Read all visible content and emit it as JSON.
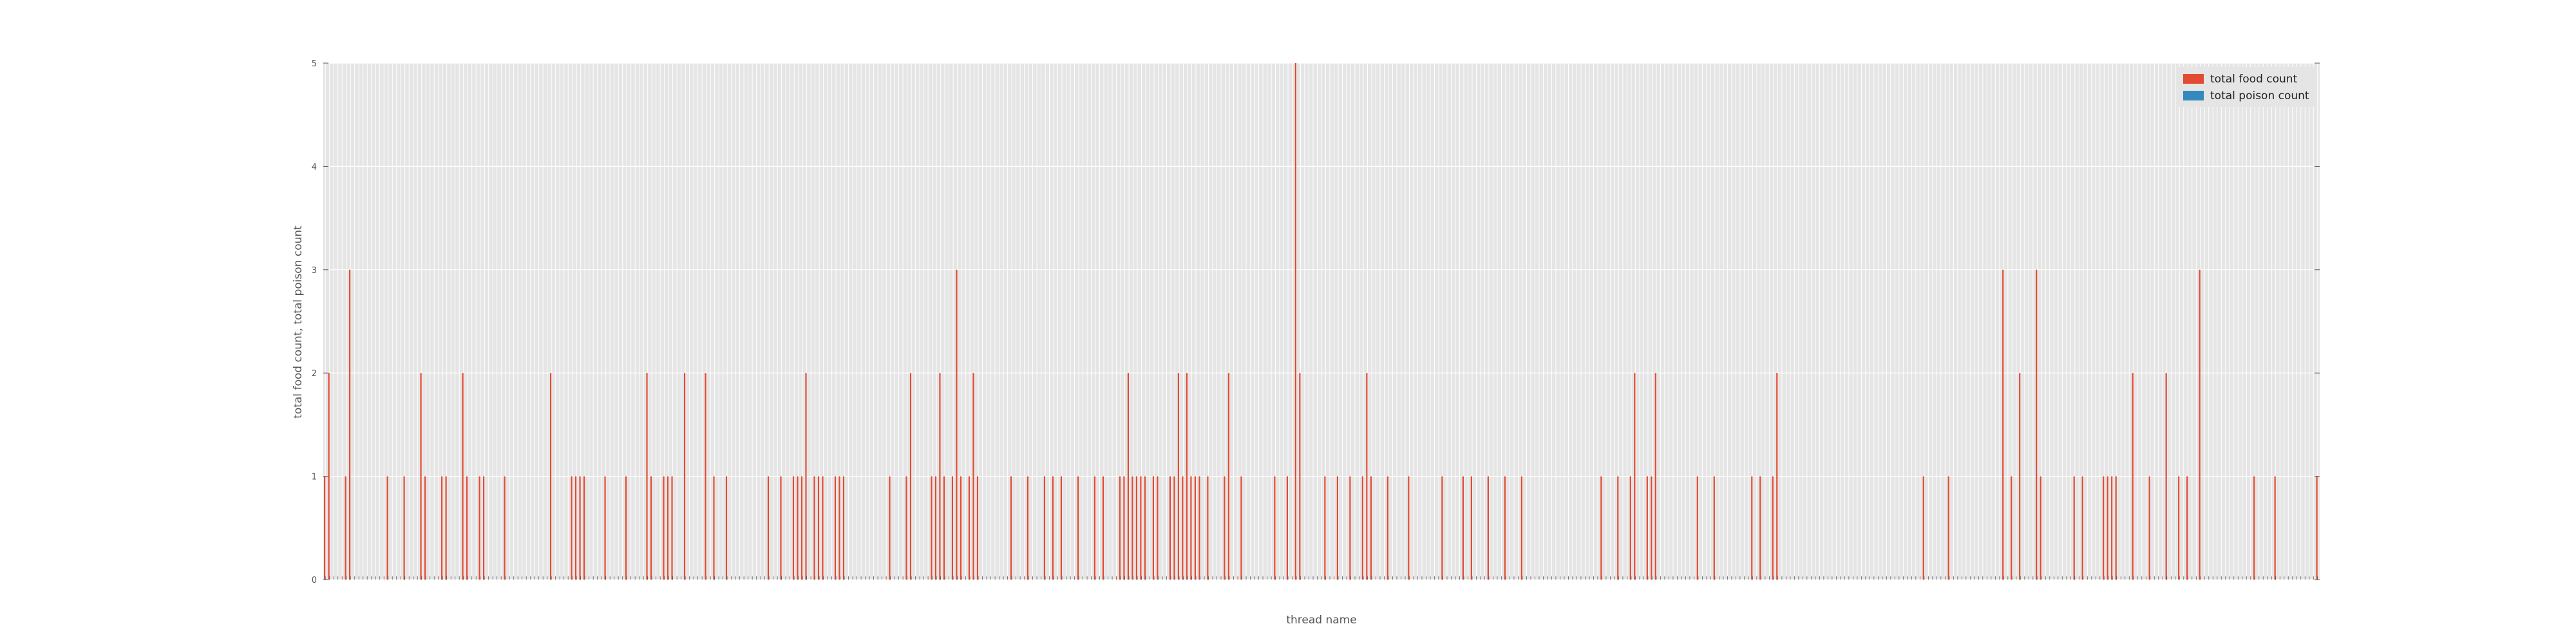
{
  "chart_data": {
    "type": "bar",
    "xlabel": "thread name",
    "ylabel": "total food count, total poison count",
    "ylim": [
      0,
      5
    ],
    "yticks": [
      0,
      1,
      2,
      3,
      4,
      5
    ],
    "grid": true,
    "legend_position": "top-right",
    "colors": {
      "background": "#e5e5e5",
      "grid": "#ffffff",
      "food": "#e24a33",
      "poison": "#348abd",
      "tick": "#555555"
    },
    "series": [
      {
        "name": "total food count",
        "values": [
          1,
          2,
          0,
          0,
          0,
          1,
          3,
          0,
          0,
          0,
          0,
          0,
          0,
          0,
          0,
          1,
          0,
          0,
          0,
          1,
          0,
          0,
          0,
          2,
          1,
          0,
          0,
          0,
          1,
          1,
          0,
          0,
          0,
          2,
          1,
          0,
          0,
          1,
          1,
          0,
          0,
          0,
          0,
          1,
          0,
          0,
          0,
          0,
          0,
          0,
          0,
          0,
          0,
          0,
          2,
          0,
          0,
          0,
          0,
          1,
          1,
          1,
          1,
          0,
          0,
          0,
          0,
          1,
          0,
          0,
          0,
          0,
          1,
          0,
          0,
          0,
          0,
          2,
          1,
          0,
          0,
          1,
          1,
          1,
          0,
          0,
          2,
          0,
          0,
          0,
          0,
          2,
          0,
          1,
          0,
          0,
          1,
          0,
          0,
          0,
          0,
          0,
          0,
          0,
          0,
          0,
          1,
          0,
          0,
          1,
          0,
          0,
          1,
          1,
          1,
          2,
          0,
          1,
          1,
          1,
          0,
          0,
          1,
          1,
          1,
          0,
          0,
          0,
          0,
          0,
          0,
          0,
          0,
          0,
          0,
          1,
          0,
          0,
          0,
          1,
          2,
          0,
          0,
          0,
          0,
          1,
          1,
          2,
          1,
          0,
          1,
          3,
          1,
          0,
          1,
          2,
          1,
          0,
          0,
          0,
          0,
          0,
          0,
          0,
          1,
          0,
          0,
          0,
          1,
          0,
          0,
          0,
          1,
          0,
          1,
          0,
          1,
          0,
          0,
          0,
          1,
          0,
          0,
          0,
          1,
          0,
          1,
          0,
          0,
          0,
          1,
          1,
          2,
          1,
          1,
          1,
          1,
          0,
          1,
          1,
          0,
          0,
          1,
          1,
          2,
          1,
          2,
          1,
          1,
          1,
          0,
          1,
          0,
          0,
          0,
          1,
          2,
          0,
          0,
          1,
          0,
          0,
          0,
          0,
          0,
          0,
          0,
          1,
          0,
          0,
          1,
          0,
          5,
          2,
          0,
          0,
          0,
          0,
          0,
          1,
          0,
          0,
          1,
          0,
          0,
          1,
          0,
          0,
          1,
          2,
          1,
          0,
          0,
          0,
          1,
          0,
          0,
          0,
          0,
          1,
          0,
          0,
          0,
          0,
          0,
          0,
          0,
          1,
          0,
          0,
          0,
          0,
          1,
          0,
          1,
          0,
          0,
          0,
          1,
          0,
          0,
          0,
          1,
          0,
          0,
          0,
          1,
          0,
          0,
          0,
          0,
          0,
          0,
          0,
          0,
          0,
          0,
          0,
          0,
          0,
          0,
          0,
          0,
          0,
          0,
          1,
          0,
          0,
          0,
          1,
          0,
          0,
          1,
          2,
          0,
          0,
          1,
          1,
          2,
          0,
          0,
          0,
          0,
          0,
          0,
          0,
          0,
          0,
          1,
          0,
          0,
          0,
          1,
          0,
          0,
          0,
          0,
          0,
          0,
          0,
          0,
          1,
          0,
          1,
          0,
          0,
          1,
          2,
          0,
          0,
          0,
          0,
          0,
          0,
          0,
          0,
          0,
          0,
          0,
          0,
          0,
          0,
          0,
          0,
          0,
          0,
          0,
          0,
          0,
          0,
          0,
          0,
          0,
          0,
          0,
          0,
          0,
          0,
          0,
          0,
          0,
          0,
          1,
          0,
          0,
          0,
          0,
          0,
          1,
          0,
          0,
          0,
          0,
          0,
          0,
          0,
          0,
          0,
          0,
          0,
          0,
          3,
          0,
          1,
          0,
          2,
          0,
          0,
          0,
          3,
          1,
          0,
          0,
          0,
          0,
          0,
          0,
          0,
          1,
          0,
          1,
          0,
          0,
          0,
          0,
          1,
          1,
          1,
          1,
          0,
          0,
          0,
          2,
          0,
          0,
          0,
          1,
          0,
          0,
          0,
          2,
          0,
          0,
          1,
          0,
          1,
          0,
          0,
          3,
          0,
          0,
          0,
          0,
          0,
          0,
          0,
          0,
          0,
          0,
          0,
          0,
          1,
          0,
          0,
          0,
          0,
          1,
          0,
          0,
          0,
          0,
          0,
          0,
          0,
          0,
          0,
          1
        ]
      },
      {
        "name": "total poison count",
        "values": [
          0,
          0,
          0,
          0,
          0,
          0,
          0,
          0,
          0,
          0,
          0,
          0,
          0,
          0,
          0,
          0,
          0,
          0,
          0,
          0,
          0,
          0,
          0,
          0,
          0,
          0,
          0,
          0,
          0,
          0,
          0,
          0,
          0,
          0,
          0,
          0,
          0,
          0,
          0,
          0,
          0,
          0,
          0,
          0,
          0,
          0,
          0,
          0,
          0,
          0,
          0,
          0,
          0,
          0,
          0,
          0,
          0,
          0,
          0,
          0,
          0,
          0,
          0,
          0,
          0,
          0,
          0,
          0,
          0,
          0,
          0,
          0,
          0,
          0,
          0,
          0,
          0,
          0,
          0,
          0,
          0,
          0,
          0,
          0,
          0,
          0,
          0,
          0,
          0,
          0,
          0,
          0,
          0,
          0,
          0,
          0,
          0,
          0,
          0,
          0,
          0,
          0,
          0,
          0,
          0,
          0,
          0,
          0,
          0,
          0,
          0,
          0,
          0,
          0,
          0,
          0,
          0,
          0,
          0,
          0,
          0,
          0,
          0,
          0,
          0,
          0,
          0,
          0,
          0,
          0,
          0,
          0,
          0,
          0,
          0,
          0,
          0,
          0,
          0,
          0,
          0,
          0,
          0,
          0,
          0,
          0,
          0,
          0,
          0,
          0,
          0,
          0,
          0,
          0,
          0,
          0,
          0,
          0,
          0,
          0,
          0,
          0,
          0,
          0,
          0,
          0,
          0,
          0,
          0,
          0,
          0,
          0,
          0,
          0,
          0,
          0,
          0,
          0,
          0,
          0,
          0,
          0,
          0,
          0,
          0,
          0,
          0,
          0,
          0,
          0,
          0,
          0,
          0,
          0,
          0,
          0,
          0,
          0,
          0,
          0,
          0,
          0,
          0,
          0,
          0,
          0,
          0,
          0,
          0,
          0,
          0,
          0,
          0,
          0,
          0,
          0,
          0,
          0,
          0,
          0,
          0,
          0,
          0,
          0,
          0,
          0,
          0,
          0,
          0,
          0,
          0,
          0,
          0,
          0,
          0,
          0,
          0,
          0,
          0,
          0,
          0,
          0,
          0,
          0,
          0,
          0,
          0,
          0,
          0,
          0,
          0,
          0,
          0,
          0,
          0,
          0,
          0,
          0,
          0,
          0,
          0,
          0,
          0,
          0,
          0,
          0,
          0,
          0,
          0,
          0,
          0,
          0,
          0,
          0,
          0,
          0,
          0,
          0,
          0,
          0,
          0,
          0,
          0,
          0,
          0,
          0,
          0,
          0,
          0,
          0,
          0,
          0,
          0,
          0,
          0,
          0,
          0,
          0,
          0,
          0,
          0,
          0,
          0,
          0,
          0,
          0,
          0,
          0,
          0,
          0,
          0,
          0,
          0,
          0,
          0,
          0,
          0,
          0,
          0,
          0,
          0,
          0,
          0,
          0,
          0,
          0,
          0,
          0,
          0,
          0,
          0,
          0,
          0,
          0,
          0,
          0,
          0,
          0,
          0,
          0,
          0,
          0,
          0,
          0,
          0,
          0,
          0,
          0,
          0,
          0,
          0,
          0,
          0,
          0,
          0,
          0,
          0,
          0,
          0,
          0,
          0,
          0,
          0,
          0,
          0,
          0,
          0,
          0,
          0,
          0,
          0,
          0,
          0,
          0,
          0,
          0,
          0,
          0,
          0,
          0,
          0,
          0,
          0,
          0,
          0,
          0,
          0,
          0,
          0,
          0,
          0,
          0,
          0,
          0,
          0,
          0,
          0,
          0,
          0,
          0,
          0,
          0,
          0,
          0,
          0,
          0,
          0,
          0,
          0,
          0,
          0,
          0,
          0,
          0,
          0,
          0,
          0,
          0,
          0,
          0,
          0,
          0,
          0,
          0,
          0,
          0,
          0,
          0,
          0,
          0,
          0,
          0,
          0,
          0,
          0,
          0,
          0,
          0,
          0,
          0,
          0,
          0,
          0,
          0,
          0,
          0,
          0,
          0,
          0,
          0,
          0,
          0,
          0,
          0,
          0,
          0,
          0,
          0,
          0,
          0,
          0,
          0,
          0,
          0,
          0,
          0,
          0,
          0,
          0,
          0,
          0,
          0,
          0,
          0,
          0,
          0,
          0,
          0,
          0,
          0,
          0,
          0,
          0,
          0,
          0,
          0,
          0,
          0
        ]
      }
    ]
  }
}
